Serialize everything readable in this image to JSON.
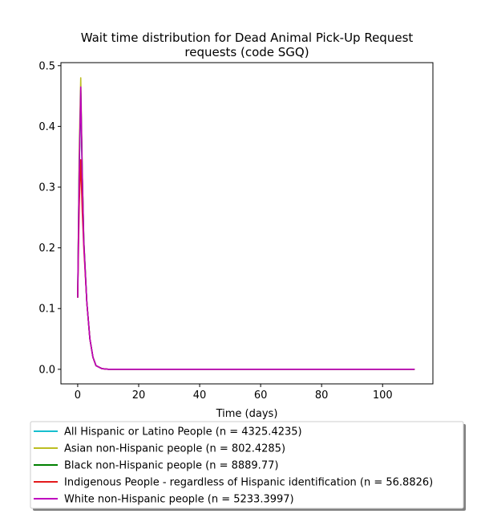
{
  "chart_data": {
    "type": "line",
    "title": [
      "Wait time distribution  for Dead Animal Pick-Up Request",
      "requests (code SGQ)"
    ],
    "xlabel": "Time (days)",
    "ylabel": "",
    "xlim": [
      -5.5,
      116.5
    ],
    "ylim": [
      -0.024,
      0.505
    ],
    "xticks": [
      0,
      20,
      40,
      60,
      80,
      100
    ],
    "xtick_labels": [
      "0",
      "20",
      "40",
      "60",
      "80",
      "100"
    ],
    "yticks": [
      0.0,
      0.1,
      0.2,
      0.3,
      0.4,
      0.5
    ],
    "ytick_labels": [
      "0.0",
      "0.1",
      "0.2",
      "0.3",
      "0.4",
      "0.5"
    ],
    "grid": false,
    "legend_position": "below plot",
    "x": [
      0,
      0.5,
      1,
      1.5,
      2,
      3,
      4,
      5,
      6,
      8,
      10,
      20,
      40,
      60,
      80,
      100,
      110.5
    ],
    "series": [
      {
        "name": "All Hispanic or Latino People (n = 4325.4235)",
        "color": "#17becf",
        "values": [
          0.118,
          0.33,
          0.455,
          0.32,
          0.21,
          0.11,
          0.05,
          0.02,
          0.006,
          0.001,
          0.0,
          0.0,
          0.0,
          0.0,
          0.0,
          0.0,
          0.0
        ]
      },
      {
        "name": "Asian non-Hispanic people (n = 802.4285)",
        "color": "#bcbd22",
        "values": [
          0.118,
          0.36,
          0.48,
          0.33,
          0.215,
          0.11,
          0.05,
          0.02,
          0.006,
          0.001,
          0.0,
          0.0,
          0.0,
          0.0,
          0.0,
          0.0,
          0.0
        ]
      },
      {
        "name": "Black non-Hispanic people (n = 8889.77)",
        "color": "#008000",
        "values": [
          0.118,
          0.33,
          0.46,
          0.32,
          0.21,
          0.11,
          0.05,
          0.02,
          0.006,
          0.001,
          0.0,
          0.0,
          0.0,
          0.0,
          0.0,
          0.0,
          0.0
        ]
      },
      {
        "name": "Indigenous People - regardless of Hispanic identification (n = 56.8826)",
        "color": "#e41a1c",
        "values": [
          0.118,
          0.27,
          0.345,
          0.26,
          0.2,
          0.11,
          0.05,
          0.02,
          0.006,
          0.001,
          0.0,
          0.0,
          0.0,
          0.0,
          0.0,
          0.0,
          0.0
        ]
      },
      {
        "name": "White non-Hispanic people (n = 5233.3997)",
        "color": "#bf00bf",
        "values": [
          0.118,
          0.33,
          0.465,
          0.32,
          0.21,
          0.11,
          0.05,
          0.02,
          0.006,
          0.001,
          0.0,
          0.0,
          0.0,
          0.0,
          0.0,
          0.0,
          0.0
        ]
      }
    ]
  }
}
